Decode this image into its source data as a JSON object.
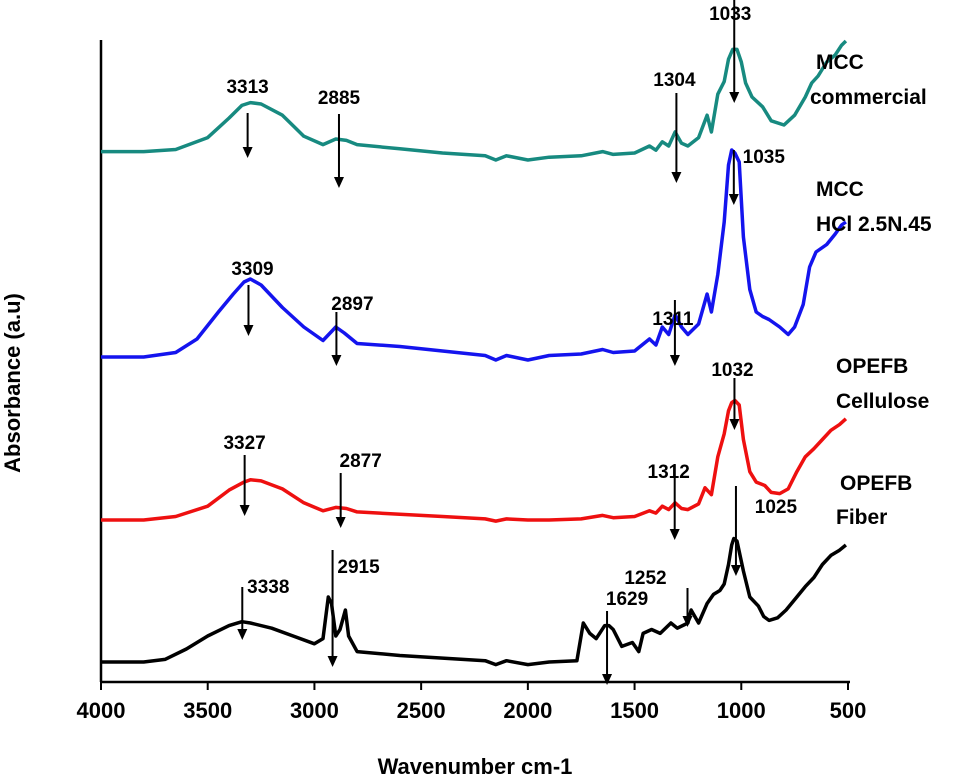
{
  "chart_data": {
    "type": "line",
    "xlabel": "Wavenumber cm-1",
    "ylabel": "Absorbance (a.u)",
    "xlim": [
      4000,
      500
    ],
    "x_ticks": [
      4000,
      3500,
      3000,
      2500,
      2000,
      1500,
      1000,
      500
    ],
    "grid": false,
    "series": [
      {
        "label_lines": [
          "MCC",
          "commercial"
        ],
        "color": "#178a80",
        "points": [
          [
            4000,
            0.06
          ],
          [
            3800,
            0.06
          ],
          [
            3650,
            0.075
          ],
          [
            3500,
            0.16
          ],
          [
            3400,
            0.3
          ],
          [
            3340,
            0.39
          ],
          [
            3300,
            0.41
          ],
          [
            3250,
            0.4
          ],
          [
            3150,
            0.32
          ],
          [
            3050,
            0.17
          ],
          [
            2960,
            0.11
          ],
          [
            2900,
            0.15
          ],
          [
            2850,
            0.14
          ],
          [
            2800,
            0.11
          ],
          [
            2600,
            0.08
          ],
          [
            2400,
            0.05
          ],
          [
            2200,
            0.03
          ],
          [
            2150,
            0.0
          ],
          [
            2100,
            0.03
          ],
          [
            2000,
            0.0
          ],
          [
            1900,
            0.02
          ],
          [
            1750,
            0.03
          ],
          [
            1650,
            0.06
          ],
          [
            1600,
            0.04
          ],
          [
            1500,
            0.05
          ],
          [
            1430,
            0.1
          ],
          [
            1400,
            0.07
          ],
          [
            1370,
            0.13
          ],
          [
            1340,
            0.1
          ],
          [
            1310,
            0.2
          ],
          [
            1280,
            0.12
          ],
          [
            1250,
            0.1
          ],
          [
            1200,
            0.16
          ],
          [
            1160,
            0.32
          ],
          [
            1140,
            0.2
          ],
          [
            1110,
            0.47
          ],
          [
            1080,
            0.56
          ],
          [
            1060,
            0.72
          ],
          [
            1040,
            0.79
          ],
          [
            1020,
            0.79
          ],
          [
            1000,
            0.7
          ],
          [
            980,
            0.55
          ],
          [
            950,
            0.45
          ],
          [
            900,
            0.38
          ],
          [
            860,
            0.28
          ],
          [
            800,
            0.25
          ],
          [
            750,
            0.32
          ],
          [
            700,
            0.45
          ],
          [
            670,
            0.55
          ],
          [
            640,
            0.6
          ],
          [
            600,
            0.7
          ],
          [
            560,
            0.75
          ],
          [
            530,
            0.82
          ],
          [
            510,
            0.85
          ]
        ]
      },
      {
        "label_lines": [
          "MCC",
          "HCl 2.5N.45"
        ],
        "color": "#1414ee",
        "points": [
          [
            4000,
            0.0
          ],
          [
            3800,
            0.0
          ],
          [
            3650,
            0.03
          ],
          [
            3550,
            0.12
          ],
          [
            3450,
            0.3
          ],
          [
            3380,
            0.42
          ],
          [
            3330,
            0.5
          ],
          [
            3300,
            0.52
          ],
          [
            3250,
            0.48
          ],
          [
            3150,
            0.33
          ],
          [
            3050,
            0.2
          ],
          [
            2960,
            0.11
          ],
          [
            2900,
            0.2
          ],
          [
            2860,
            0.16
          ],
          [
            2800,
            0.09
          ],
          [
            2600,
            0.07
          ],
          [
            2400,
            0.04
          ],
          [
            2200,
            0.01
          ],
          [
            2150,
            -0.02
          ],
          [
            2100,
            0.01
          ],
          [
            2000,
            -0.02
          ],
          [
            1900,
            0.01
          ],
          [
            1750,
            0.02
          ],
          [
            1650,
            0.05
          ],
          [
            1600,
            0.03
          ],
          [
            1500,
            0.04
          ],
          [
            1430,
            0.12
          ],
          [
            1400,
            0.08
          ],
          [
            1370,
            0.2
          ],
          [
            1340,
            0.15
          ],
          [
            1310,
            0.28
          ],
          [
            1280,
            0.2
          ],
          [
            1250,
            0.15
          ],
          [
            1200,
            0.22
          ],
          [
            1160,
            0.42
          ],
          [
            1140,
            0.3
          ],
          [
            1110,
            0.55
          ],
          [
            1080,
            0.9
          ],
          [
            1060,
            1.28
          ],
          [
            1045,
            1.38
          ],
          [
            1030,
            1.36
          ],
          [
            1010,
            1.3
          ],
          [
            990,
            0.8
          ],
          [
            960,
            0.45
          ],
          [
            930,
            0.3
          ],
          [
            900,
            0.27
          ],
          [
            870,
            0.25
          ],
          [
            820,
            0.2
          ],
          [
            780,
            0.15
          ],
          [
            750,
            0.2
          ],
          [
            710,
            0.35
          ],
          [
            680,
            0.6
          ],
          [
            650,
            0.7
          ],
          [
            600,
            0.75
          ],
          [
            560,
            0.82
          ],
          [
            530,
            0.88
          ],
          [
            510,
            0.9
          ]
        ]
      },
      {
        "label_lines": [
          "OPEFB",
          "Cellulose"
        ],
        "color": "#ee1010",
        "points": [
          [
            4000,
            0.0
          ],
          [
            3800,
            0.0
          ],
          [
            3650,
            0.03
          ],
          [
            3500,
            0.12
          ],
          [
            3400,
            0.26
          ],
          [
            3330,
            0.33
          ],
          [
            3300,
            0.35
          ],
          [
            3250,
            0.34
          ],
          [
            3150,
            0.27
          ],
          [
            3050,
            0.15
          ],
          [
            2960,
            0.08
          ],
          [
            2900,
            0.11
          ],
          [
            2850,
            0.1
          ],
          [
            2800,
            0.07
          ],
          [
            2600,
            0.05
          ],
          [
            2400,
            0.03
          ],
          [
            2200,
            0.01
          ],
          [
            2150,
            -0.01
          ],
          [
            2100,
            0.01
          ],
          [
            2000,
            0.0
          ],
          [
            1900,
            0.0
          ],
          [
            1750,
            0.01
          ],
          [
            1650,
            0.04
          ],
          [
            1600,
            0.02
          ],
          [
            1500,
            0.03
          ],
          [
            1430,
            0.08
          ],
          [
            1400,
            0.06
          ],
          [
            1370,
            0.12
          ],
          [
            1340,
            0.09
          ],
          [
            1310,
            0.15
          ],
          [
            1280,
            0.1
          ],
          [
            1250,
            0.09
          ],
          [
            1200,
            0.14
          ],
          [
            1170,
            0.28
          ],
          [
            1140,
            0.22
          ],
          [
            1110,
            0.55
          ],
          [
            1080,
            0.75
          ],
          [
            1060,
            0.95
          ],
          [
            1045,
            1.02
          ],
          [
            1030,
            1.04
          ],
          [
            1010,
            1.0
          ],
          [
            990,
            0.7
          ],
          [
            960,
            0.42
          ],
          [
            930,
            0.33
          ],
          [
            890,
            0.3
          ],
          [
            860,
            0.24
          ],
          [
            820,
            0.23
          ],
          [
            780,
            0.27
          ],
          [
            740,
            0.42
          ],
          [
            700,
            0.55
          ],
          [
            660,
            0.62
          ],
          [
            620,
            0.7
          ],
          [
            580,
            0.78
          ],
          [
            540,
            0.83
          ],
          [
            510,
            0.88
          ]
        ]
      },
      {
        "label_lines": [
          "OPEFB",
          "Fiber"
        ],
        "color": "#000000",
        "points": [
          [
            4000,
            0.0
          ],
          [
            3800,
            0.0
          ],
          [
            3700,
            0.02
          ],
          [
            3600,
            0.1
          ],
          [
            3500,
            0.2
          ],
          [
            3400,
            0.28
          ],
          [
            3340,
            0.31
          ],
          [
            3300,
            0.3
          ],
          [
            3200,
            0.26
          ],
          [
            3100,
            0.2
          ],
          [
            3000,
            0.14
          ],
          [
            2960,
            0.18
          ],
          [
            2935,
            0.5
          ],
          [
            2920,
            0.45
          ],
          [
            2900,
            0.2
          ],
          [
            2880,
            0.25
          ],
          [
            2855,
            0.4
          ],
          [
            2840,
            0.2
          ],
          [
            2800,
            0.08
          ],
          [
            2600,
            0.05
          ],
          [
            2400,
            0.03
          ],
          [
            2200,
            0.01
          ],
          [
            2150,
            -0.02
          ],
          [
            2100,
            0.01
          ],
          [
            2000,
            -0.02
          ],
          [
            1900,
            0.0
          ],
          [
            1770,
            0.01
          ],
          [
            1740,
            0.3
          ],
          [
            1710,
            0.22
          ],
          [
            1680,
            0.18
          ],
          [
            1640,
            0.28
          ],
          [
            1620,
            0.28
          ],
          [
            1600,
            0.25
          ],
          [
            1560,
            0.12
          ],
          [
            1510,
            0.15
          ],
          [
            1480,
            0.08
          ],
          [
            1460,
            0.22
          ],
          [
            1420,
            0.25
          ],
          [
            1380,
            0.22
          ],
          [
            1330,
            0.3
          ],
          [
            1300,
            0.26
          ],
          [
            1250,
            0.3
          ],
          [
            1235,
            0.4
          ],
          [
            1200,
            0.3
          ],
          [
            1160,
            0.45
          ],
          [
            1130,
            0.52
          ],
          [
            1100,
            0.55
          ],
          [
            1080,
            0.6
          ],
          [
            1060,
            0.75
          ],
          [
            1045,
            0.9
          ],
          [
            1035,
            0.95
          ],
          [
            1020,
            0.93
          ],
          [
            990,
            0.7
          ],
          [
            960,
            0.5
          ],
          [
            920,
            0.43
          ],
          [
            895,
            0.35
          ],
          [
            870,
            0.32
          ],
          [
            830,
            0.34
          ],
          [
            790,
            0.4
          ],
          [
            740,
            0.5
          ],
          [
            700,
            0.58
          ],
          [
            660,
            0.65
          ],
          [
            620,
            0.75
          ],
          [
            580,
            0.82
          ],
          [
            540,
            0.86
          ],
          [
            510,
            0.9
          ]
        ]
      }
    ],
    "peak_annotations": [
      {
        "series": 0,
        "text": "3313",
        "x": 3313
      },
      {
        "series": 0,
        "text": "2885",
        "x": 2885
      },
      {
        "series": 0,
        "text": "1304",
        "x": 1304
      },
      {
        "series": 0,
        "text": "1033",
        "x": 1033
      },
      {
        "series": 1,
        "text": "3309",
        "x": 3309
      },
      {
        "series": 1,
        "text": "2897",
        "x": 2897
      },
      {
        "series": 1,
        "text": "1311",
        "x": 1311
      },
      {
        "series": 1,
        "text": "1035",
        "x": 1035
      },
      {
        "series": 2,
        "text": "3327",
        "x": 3327
      },
      {
        "series": 2,
        "text": "2877",
        "x": 2877
      },
      {
        "series": 2,
        "text": "1312",
        "x": 1312
      },
      {
        "series": 2,
        "text": "1032",
        "x": 1032
      },
      {
        "series": 3,
        "text": "3338",
        "x": 3338
      },
      {
        "series": 3,
        "text": "2915",
        "x": 2915
      },
      {
        "series": 3,
        "text": "1629",
        "x": 1629
      },
      {
        "series": 3,
        "text": "1252",
        "x": 1252
      },
      {
        "series": 3,
        "text": "1025",
        "x": 1025
      }
    ]
  }
}
